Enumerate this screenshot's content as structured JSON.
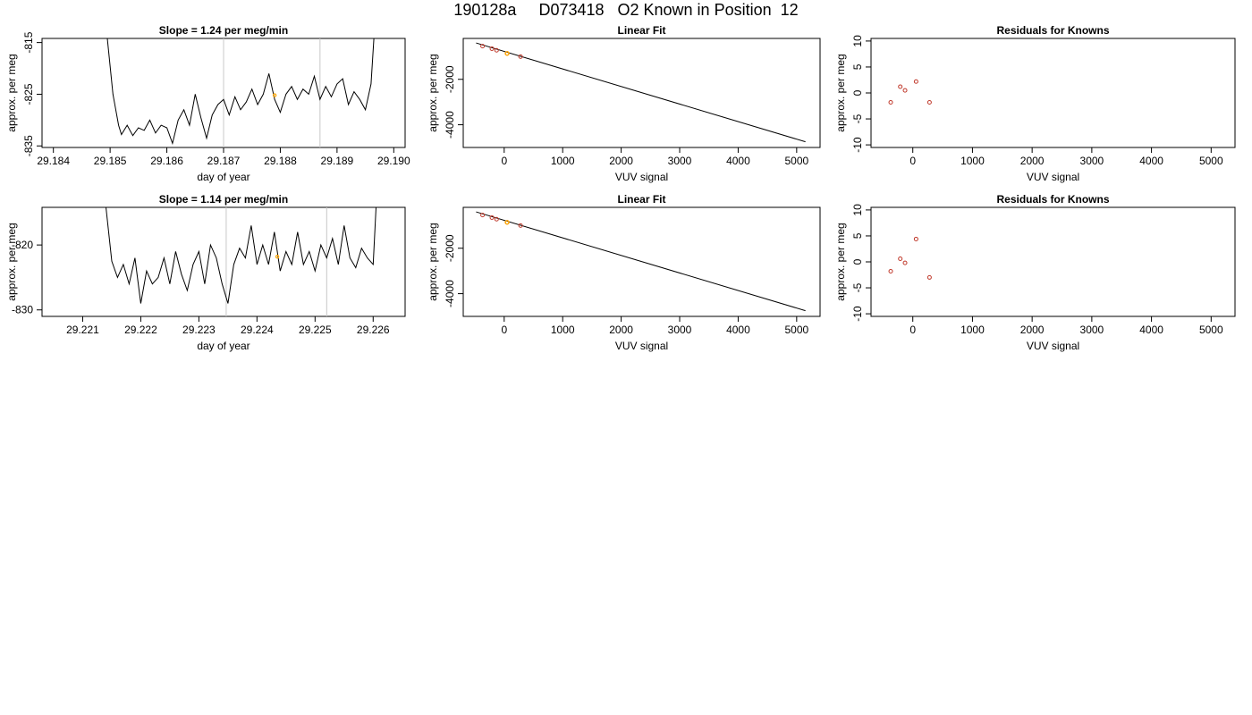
{
  "page": {
    "title": "190128a     D073418   O2 Known in Position  12"
  },
  "colors": {
    "line": "#000000",
    "knowns": "#c0392b",
    "sample": "#ffa500",
    "marker": "#c8c8c8"
  },
  "chart_data": [
    {
      "id": "p1",
      "type": "line",
      "title": "Slope =  1.24  per meg/min",
      "xlabel": "day of year",
      "ylabel": "approx. per meg",
      "xlim": [
        29.1838,
        29.1902
      ],
      "ylim": [
        -835.3,
        -814.2
      ],
      "xticks": [
        "29.184",
        "29.185",
        "29.186",
        "29.187",
        "29.188",
        "29.189",
        "29.190"
      ],
      "xtick_values": [
        29.184,
        29.185,
        29.186,
        29.187,
        29.188,
        29.189,
        29.19
      ],
      "yticks": [
        "-815",
        "-825",
        "-835"
      ],
      "ytick_values": [
        -815,
        -825,
        -835
      ],
      "ytick_rotated": true,
      "vlines": [
        29.187,
        29.1887
      ],
      "points": [
        {
          "x": 29.1879,
          "y": -825.2
        }
      ],
      "series": {
        "x": [
          29.18495,
          29.18505,
          29.18515,
          29.1852,
          29.1853,
          29.1854,
          29.1855,
          29.1856,
          29.1857,
          29.1858,
          29.1859,
          29.186,
          29.1861,
          29.1862,
          29.1863,
          29.1864,
          29.1865,
          29.1866,
          29.1867,
          29.1868,
          29.1869,
          29.187,
          29.1871,
          29.1872,
          29.1873,
          29.1874,
          29.1875,
          29.1876,
          29.1877,
          29.1878,
          29.1879,
          29.188,
          29.1881,
          29.1882,
          29.1883,
          29.1884,
          29.1885,
          29.1886,
          29.1887,
          29.1888,
          29.1889,
          29.189,
          29.1891,
          29.1892,
          29.1893,
          29.1894,
          29.1895,
          29.1896,
          29.18965
        ],
        "y": [
          -814.2,
          -825.0,
          -831.0,
          -832.8,
          -831.0,
          -833.0,
          -831.5,
          -832.0,
          -830.0,
          -832.5,
          -831.0,
          -831.5,
          -834.5,
          -830.0,
          -828.0,
          -831.0,
          -825.0,
          -829.5,
          -833.5,
          -829.0,
          -827.0,
          -826.0,
          -829.0,
          -825.5,
          -828.0,
          -826.5,
          -824.0,
          -827.0,
          -825.0,
          -821.0,
          -826.0,
          -828.5,
          -825.0,
          -823.5,
          -826.0,
          -824.0,
          -825.0,
          -821.5,
          -826.0,
          -823.5,
          -825.5,
          -823.0,
          -822.0,
          -827.0,
          -824.5,
          -826.0,
          -828.0,
          -823.0,
          -814.2
        ]
      }
    },
    {
      "id": "p2",
      "type": "scatter",
      "title": "Linear Fit",
      "xlabel": "VUV signal",
      "ylabel": "approx. per meg",
      "xlim": [
        -700,
        5400
      ],
      "ylim": [
        -5000,
        -200
      ],
      "xticks": [
        "0",
        "1000",
        "2000",
        "3000",
        "4000",
        "5000"
      ],
      "xtick_values": [
        0,
        1000,
        2000,
        3000,
        4000,
        5000
      ],
      "yticks": [
        "-2000",
        "-4000"
      ],
      "ytick_values": [
        -2000,
        -4000
      ],
      "ytick_rotated": true,
      "fit_line": [
        [
          -480,
          -400
        ],
        [
          5150,
          -4750
        ]
      ],
      "knowns": [
        {
          "x": -370,
          "y": -540
        },
        {
          "x": -210,
          "y": -650
        },
        {
          "x": -130,
          "y": -720
        },
        {
          "x": 280,
          "y": -1000
        },
        {
          "x": 50,
          "y": -860
        }
      ],
      "sample": [
        {
          "x": 50,
          "y": -860
        }
      ]
    },
    {
      "id": "p3",
      "type": "scatter",
      "title": "Residuals for Knowns",
      "xlabel": "VUV signal",
      "ylabel": "approx. per meg",
      "xlim": [
        -700,
        5400
      ],
      "ylim": [
        -10.5,
        10.5
      ],
      "xticks": [
        "0",
        "1000",
        "2000",
        "3000",
        "4000",
        "5000"
      ],
      "xtick_values": [
        0,
        1000,
        2000,
        3000,
        4000,
        5000
      ],
      "yticks": [
        "10",
        "5",
        "0",
        "-5",
        "-10"
      ],
      "ytick_values": [
        10,
        5,
        0,
        -5,
        -10
      ],
      "ytick_rotated": true,
      "knowns": [
        {
          "x": -370,
          "y": -1.8
        },
        {
          "x": -210,
          "y": 1.2
        },
        {
          "x": -130,
          "y": 0.5
        },
        {
          "x": 55,
          "y": 2.2
        },
        {
          "x": 280,
          "y": -1.8
        }
      ]
    },
    {
      "id": "p4",
      "type": "line",
      "title": "Slope =  1.14  per meg/min",
      "xlabel": "day of year",
      "ylabel": "approx. per meg",
      "xlim": [
        29.2203,
        29.22655
      ],
      "ylim": [
        -831.0,
        -814.2
      ],
      "xticks": [
        "29.221",
        "29.222",
        "29.223",
        "29.224",
        "29.225",
        "29.226"
      ],
      "xtick_values": [
        29.221,
        29.222,
        29.223,
        29.224,
        29.225,
        29.226
      ],
      "yticks": [
        "-820",
        "-830"
      ],
      "ytick_values": [
        -820,
        -830
      ],
      "ytick_rotated": false,
      "vlines": [
        29.22347,
        29.2252
      ],
      "points": [
        {
          "x": 29.22435,
          "y": -821.8
        }
      ],
      "series": {
        "x": [
          29.2214,
          29.2215,
          29.2216,
          29.2217,
          29.2218,
          29.2219,
          29.222,
          29.2221,
          29.2222,
          29.2223,
          29.2224,
          29.2225,
          29.2226,
          29.2227,
          29.2228,
          29.2229,
          29.223,
          29.2231,
          29.2232,
          29.2233,
          29.2234,
          29.2235,
          29.2236,
          29.2237,
          29.2238,
          29.2239,
          29.224,
          29.2241,
          29.2242,
          29.2243,
          29.2244,
          29.2245,
          29.2246,
          29.2247,
          29.2248,
          29.2249,
          29.225,
          29.2251,
          29.2252,
          29.2253,
          29.2254,
          29.2255,
          29.2256,
          29.2257,
          29.2258,
          29.2259,
          29.226,
          29.22605
        ],
        "y": [
          -814.2,
          -822.5,
          -825.0,
          -823.0,
          -826.0,
          -822.0,
          -829.0,
          -824.0,
          -826.0,
          -825.0,
          -822.0,
          -826.0,
          -821.0,
          -824.5,
          -827.0,
          -823.0,
          -821.0,
          -826.0,
          -820.0,
          -822.0,
          -826.0,
          -829.0,
          -823.0,
          -820.5,
          -822.0,
          -817.0,
          -823.0,
          -820.0,
          -823.0,
          -818.0,
          -824.0,
          -821.0,
          -823.0,
          -818.0,
          -823.0,
          -821.0,
          -824.0,
          -820.0,
          -822.0,
          -819.0,
          -823.0,
          -817.0,
          -822.0,
          -823.5,
          -820.5,
          -822.0,
          -823.0,
          -814.2
        ]
      }
    },
    {
      "id": "p5",
      "type": "scatter",
      "title": "Linear Fit",
      "xlabel": "VUV signal",
      "ylabel": "approx. per meg",
      "xlim": [
        -700,
        5400
      ],
      "ylim": [
        -5000,
        -200
      ],
      "xticks": [
        "0",
        "1000",
        "2000",
        "3000",
        "4000",
        "5000"
      ],
      "xtick_values": [
        0,
        1000,
        2000,
        3000,
        4000,
        5000
      ],
      "yticks": [
        "-2000",
        "-4000"
      ],
      "ytick_values": [
        -2000,
        -4000
      ],
      "ytick_rotated": true,
      "fit_line": [
        [
          -480,
          -400
        ],
        [
          5150,
          -4750
        ]
      ],
      "knowns": [
        {
          "x": -370,
          "y": -540
        },
        {
          "x": -210,
          "y": -650
        },
        {
          "x": -130,
          "y": -720
        },
        {
          "x": 280,
          "y": -1000
        },
        {
          "x": 50,
          "y": -860
        }
      ],
      "sample": [
        {
          "x": 50,
          "y": -860
        }
      ]
    },
    {
      "id": "p6",
      "type": "scatter",
      "title": "Residuals for Knowns",
      "xlabel": "VUV signal",
      "ylabel": "approx. per meg",
      "xlim": [
        -700,
        5400
      ],
      "ylim": [
        -10.5,
        10.5
      ],
      "xticks": [
        "0",
        "1000",
        "2000",
        "3000",
        "4000",
        "5000"
      ],
      "xtick_values": [
        0,
        1000,
        2000,
        3000,
        4000,
        5000
      ],
      "yticks": [
        "10",
        "5",
        "0",
        "-5",
        "-10"
      ],
      "ytick_values": [
        10,
        5,
        0,
        -5,
        -10
      ],
      "ytick_rotated": true,
      "knowns": [
        {
          "x": -370,
          "y": -1.8
        },
        {
          "x": -210,
          "y": 0.6
        },
        {
          "x": -130,
          "y": -0.2
        },
        {
          "x": 55,
          "y": 4.4
        },
        {
          "x": 280,
          "y": -3.0
        }
      ]
    }
  ]
}
